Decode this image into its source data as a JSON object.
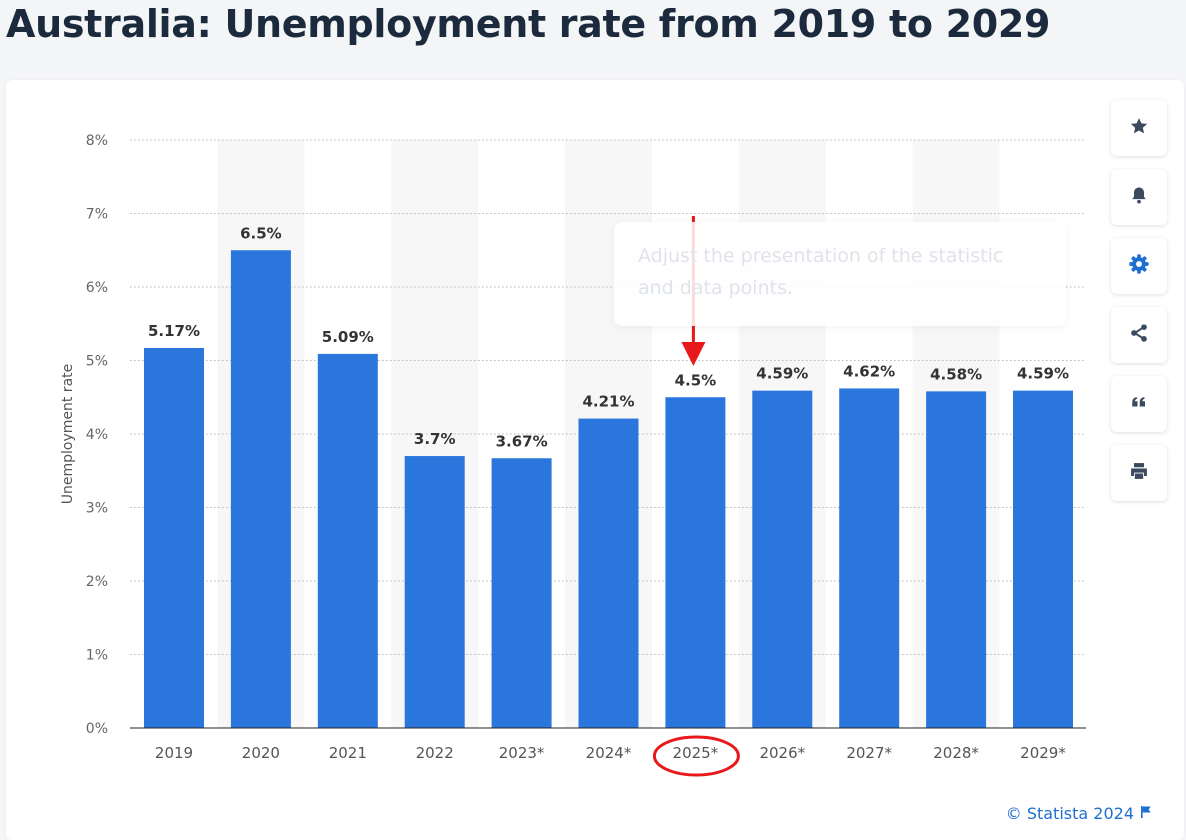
{
  "page": {
    "title": "Australia: Unemployment rate from 2019 to 2029",
    "credit": "© Statista 2024",
    "tooltip": "Adjust the presentation of the statistic and data points."
  },
  "toolbar": [
    {
      "name": "star-icon",
      "icon": "star"
    },
    {
      "name": "bell-icon",
      "icon": "bell"
    },
    {
      "name": "gear-icon",
      "icon": "gear"
    },
    {
      "name": "share-icon",
      "icon": "share"
    },
    {
      "name": "quote-icon",
      "icon": "quote"
    },
    {
      "name": "print-icon",
      "icon": "print"
    }
  ],
  "colors": {
    "bar": "#2a76dd",
    "accent": "#1f6fd1",
    "annotation": "#e8191b",
    "icon": "#3b4a5e"
  },
  "chart_data": {
    "type": "bar",
    "categories": [
      "2019",
      "2020",
      "2021",
      "2022",
      "2023*",
      "2024*",
      "2025*",
      "2026*",
      "2027*",
      "2028*",
      "2029*"
    ],
    "values": [
      5.17,
      6.5,
      5.09,
      3.7,
      3.67,
      4.21,
      4.5,
      4.59,
      4.62,
      4.58,
      4.59
    ],
    "labels": [
      "5.17%",
      "6.5%",
      "5.09%",
      "3.7%",
      "3.67%",
      "4.21%",
      "4.5%",
      "4.59%",
      "4.62%",
      "4.58%",
      "4.59%"
    ],
    "ylabel": "Unemployment rate",
    "ylim": [
      0,
      8
    ],
    "yticks": [
      "0%",
      "1%",
      "2%",
      "3%",
      "4%",
      "5%",
      "6%",
      "7%",
      "8%"
    ],
    "grid": true,
    "highlighted_category": "2025*"
  }
}
